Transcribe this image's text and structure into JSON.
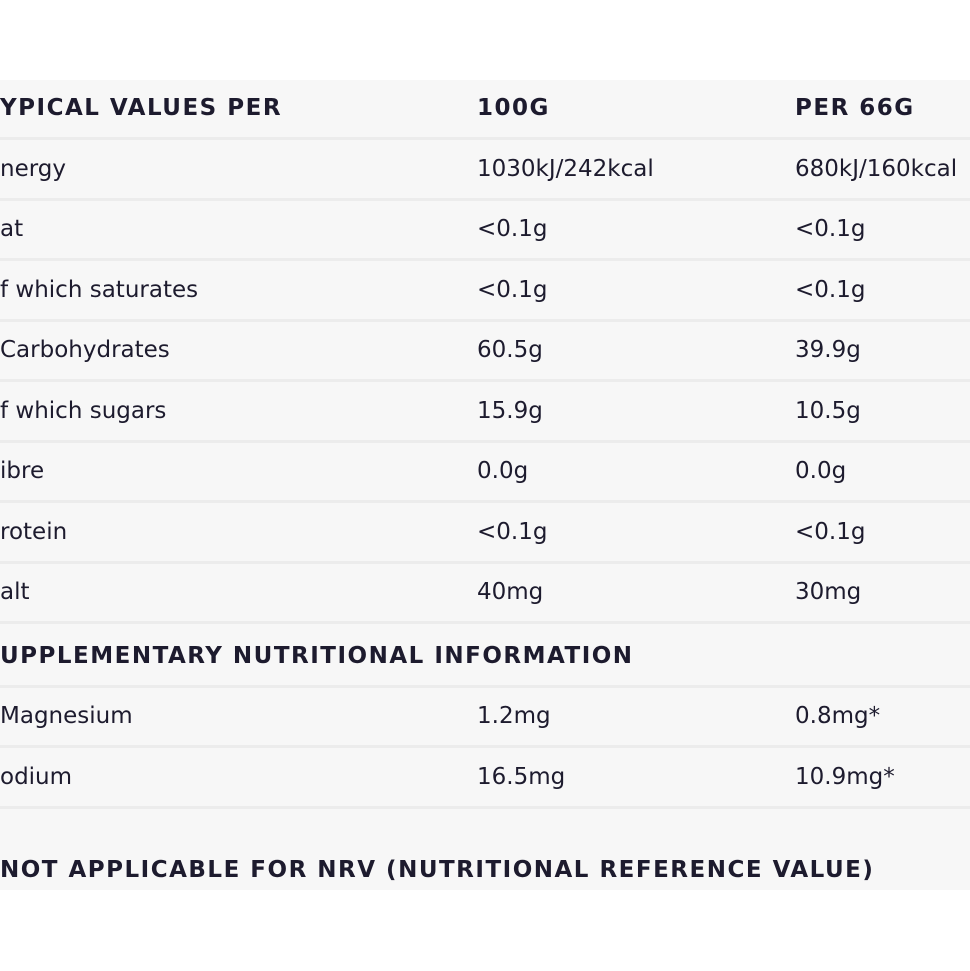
{
  "table": {
    "header": [
      "YPICAL VALUES PER",
      "100G",
      "PER 66G"
    ],
    "rows": [
      [
        "nergy",
        "1030kJ/242kcal",
        "680kJ/160kcal"
      ],
      [
        "at",
        "<0.1g",
        "<0.1g"
      ],
      [
        "f which saturates",
        "<0.1g",
        "<0.1g"
      ],
      [
        "Carbohydrates",
        "60.5g",
        "39.9g"
      ],
      [
        "f which sugars",
        "15.9g",
        "10.5g"
      ],
      [
        "ibre",
        "0.0g",
        "0.0g"
      ],
      [
        "rotein",
        "<0.1g",
        "<0.1g"
      ],
      [
        "alt",
        "40mg",
        "30mg"
      ]
    ],
    "supplementary_title": "UPPLEMENTARY NUTRITIONAL INFORMATION",
    "supplementary_rows": [
      [
        "Magnesium",
        "1.2mg",
        "0.8mg*"
      ],
      [
        "odium",
        "16.5mg",
        "10.9mg*"
      ]
    ],
    "footnote": "NOT APPLICABLE FOR NRV (NUTRITIONAL REFERENCE VALUE)"
  }
}
